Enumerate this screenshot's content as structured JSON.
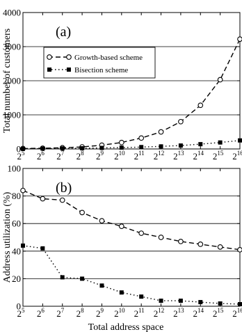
{
  "chart_data": [
    {
      "type": "line",
      "panel_label": "(a)",
      "xlabel": "",
      "ylabel": "Total number of customers",
      "x_base": "2",
      "x_exponents": [
        "5",
        "6",
        "7",
        "8",
        "9",
        "10",
        "11",
        "12",
        "13",
        "14",
        "15",
        "16"
      ],
      "x_exponent_values": [
        5,
        6,
        7,
        8,
        9,
        10,
        11,
        12,
        13,
        14,
        15,
        16
      ],
      "ylim": [
        0,
        4000
      ],
      "yticks": [
        0,
        1000,
        2000,
        3000,
        4000
      ],
      "ytick_labels": [
        "0",
        "1000",
        "2000",
        "3000",
        "4000"
      ],
      "grid": "horizontal",
      "legend_position": "upper-left",
      "series": [
        {
          "name": "Growth-based scheme",
          "line_style": "dashed",
          "marker": "open-circle",
          "values": [
            12,
            22,
            35,
            60,
            110,
            190,
            320,
            500,
            800,
            1280,
            2030,
            3220
          ]
        },
        {
          "name": "Bisection scheme",
          "line_style": "dotted",
          "marker": "filled-square",
          "values": [
            5,
            10,
            15,
            20,
            30,
            40,
            55,
            75,
            100,
            140,
            190,
            250
          ]
        }
      ]
    },
    {
      "type": "line",
      "panel_label": "(b)",
      "xlabel": "Total address space",
      "ylabel": "Address utilization (%)",
      "x_base": "2",
      "x_exponents": [
        "5",
        "6",
        "7",
        "8",
        "9",
        "10",
        "11",
        "12",
        "13",
        "14",
        "15",
        "16"
      ],
      "x_exponent_values": [
        5,
        6,
        7,
        8,
        9,
        10,
        11,
        12,
        13,
        14,
        15,
        16
      ],
      "ylim": [
        0,
        100
      ],
      "yticks": [
        0,
        20,
        40,
        60,
        80,
        100
      ],
      "ytick_labels": [
        "0",
        "20",
        "40",
        "60",
        "80",
        "100"
      ],
      "grid": "horizontal",
      "series": [
        {
          "line_style": "dashed",
          "marker": "open-circle",
          "values": [
            84,
            78,
            77,
            68,
            62,
            58,
            53,
            50,
            47,
            45,
            43,
            41
          ]
        },
        {
          "line_style": "dotted",
          "marker": "filled-square",
          "values": [
            44,
            42,
            21,
            20,
            15,
            10,
            7,
            4,
            4,
            3,
            2,
            1.5
          ]
        }
      ]
    }
  ]
}
